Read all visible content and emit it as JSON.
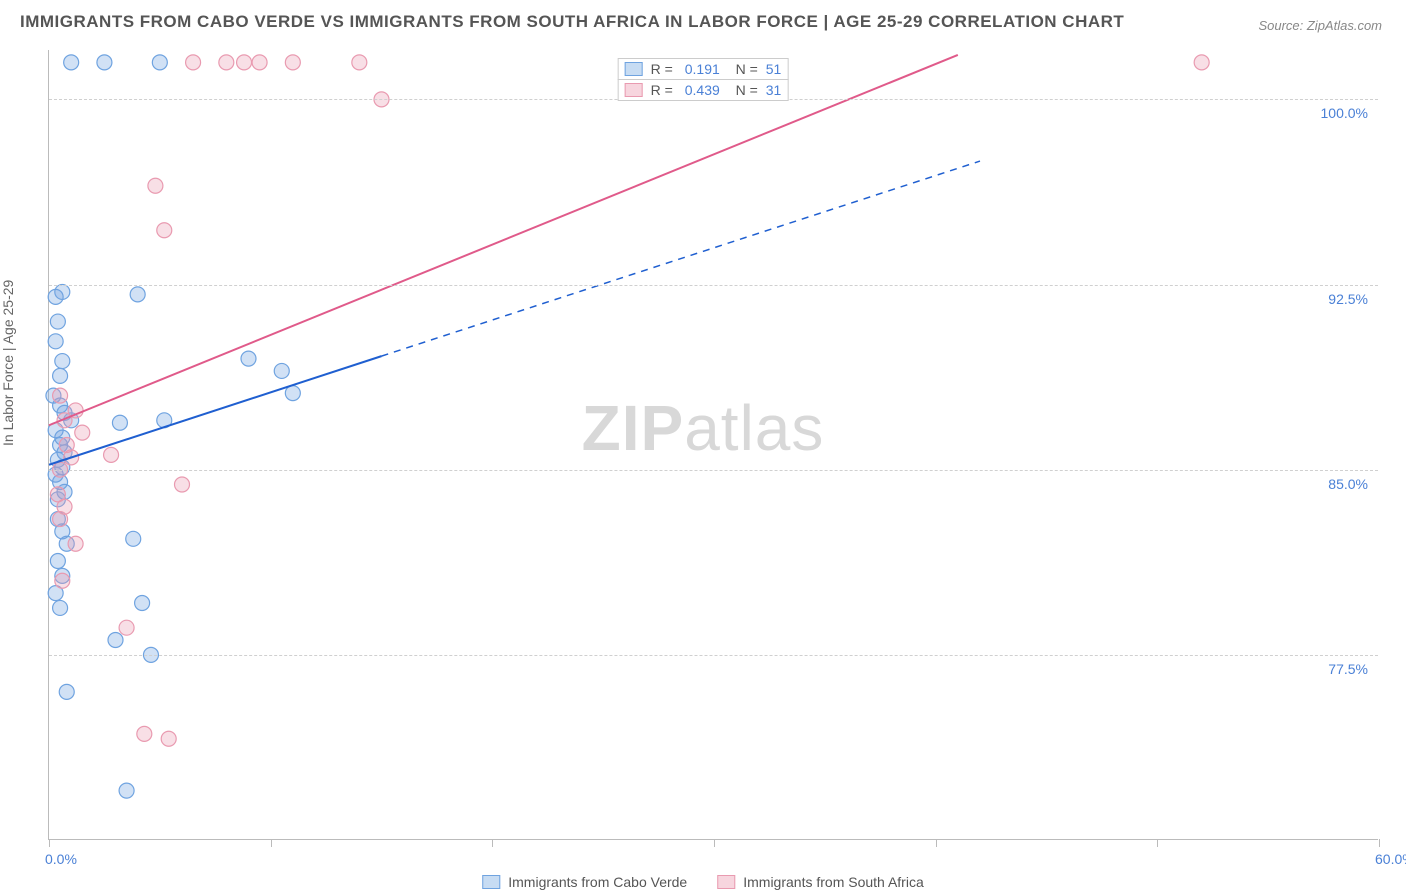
{
  "title": "IMMIGRANTS FROM CABO VERDE VS IMMIGRANTS FROM SOUTH AFRICA IN LABOR FORCE | AGE 25-29 CORRELATION CHART",
  "source": "Source: ZipAtlas.com",
  "watermark_bold": "ZIP",
  "watermark_light": "atlas",
  "ylabel": "In Labor Force | Age 25-29",
  "chart": {
    "type": "scatter",
    "xlim": [
      0,
      60
    ],
    "ylim": [
      70,
      102
    ],
    "x_ticks": [
      0,
      10,
      20,
      30,
      40,
      50,
      60
    ],
    "x_tick_labels": [
      "0.0%",
      "",
      "",
      "",
      "",
      "",
      "60.0%"
    ],
    "y_ticks": [
      77.5,
      85.0,
      92.5,
      100.0
    ],
    "y_tick_labels": [
      "77.5%",
      "85.0%",
      "92.5%",
      "100.0%"
    ],
    "grid_color": "#d0d0d0",
    "background_color": "#ffffff",
    "marker_radius": 7.5,
    "marker_stroke_width": 1.2,
    "fill_opacity": 0.32,
    "series": [
      {
        "name": "Immigrants from Cabo Verde",
        "color": "#6fa3e0",
        "line_color": "#1f5fd0",
        "R": "0.191",
        "N": "51",
        "trend": {
          "x1": 0,
          "y1": 85.2,
          "x2": 15,
          "y2": 89.6,
          "dash_x2": 42,
          "dash_y2": 97.5
        },
        "points": [
          [
            1.0,
            101.5
          ],
          [
            2.5,
            101.5
          ],
          [
            5.0,
            101.5
          ],
          [
            0.3,
            92.0
          ],
          [
            0.6,
            92.2
          ],
          [
            0.4,
            91.0
          ],
          [
            4.0,
            92.1
          ],
          [
            0.3,
            90.2
          ],
          [
            0.6,
            89.4
          ],
          [
            0.5,
            88.8
          ],
          [
            0.2,
            88.0
          ],
          [
            0.5,
            87.6
          ],
          [
            0.7,
            87.3
          ],
          [
            1.0,
            87.0
          ],
          [
            0.3,
            86.6
          ],
          [
            0.6,
            86.3
          ],
          [
            0.5,
            86.0
          ],
          [
            0.7,
            85.7
          ],
          [
            0.4,
            85.4
          ],
          [
            0.6,
            85.1
          ],
          [
            0.3,
            84.8
          ],
          [
            0.5,
            84.5
          ],
          [
            0.7,
            84.1
          ],
          [
            0.4,
            83.8
          ],
          [
            3.2,
            86.9
          ],
          [
            5.2,
            87.0
          ],
          [
            9.0,
            89.5
          ],
          [
            10.5,
            89.0
          ],
          [
            11.0,
            88.1
          ],
          [
            0.4,
            83.0
          ],
          [
            0.6,
            82.5
          ],
          [
            0.8,
            82.0
          ],
          [
            3.8,
            82.2
          ],
          [
            0.4,
            81.3
          ],
          [
            0.6,
            80.7
          ],
          [
            0.3,
            80.0
          ],
          [
            0.5,
            79.4
          ],
          [
            4.2,
            79.6
          ],
          [
            3.0,
            78.1
          ],
          [
            4.6,
            77.5
          ],
          [
            0.8,
            76.0
          ],
          [
            3.5,
            72.0
          ]
        ]
      },
      {
        "name": "Immigrants from South Africa",
        "color": "#e99ab0",
        "line_color": "#e05a8a",
        "R": "0.439",
        "N": "31",
        "trend": {
          "x1": 0,
          "y1": 86.8,
          "x2": 41,
          "y2": 101.8
        },
        "points": [
          [
            6.5,
            101.5
          ],
          [
            8.0,
            101.5
          ],
          [
            8.8,
            101.5
          ],
          [
            9.5,
            101.5
          ],
          [
            11.0,
            101.5
          ],
          [
            14.0,
            101.5
          ],
          [
            52.0,
            101.5
          ],
          [
            15.0,
            100.0
          ],
          [
            4.8,
            96.5
          ],
          [
            5.2,
            94.7
          ],
          [
            0.5,
            88.0
          ],
          [
            1.2,
            87.4
          ],
          [
            0.7,
            87.0
          ],
          [
            1.5,
            86.5
          ],
          [
            0.8,
            86.0
          ],
          [
            1.0,
            85.5
          ],
          [
            0.5,
            85.0
          ],
          [
            2.8,
            85.6
          ],
          [
            6.0,
            84.4
          ],
          [
            0.4,
            84.0
          ],
          [
            0.7,
            83.5
          ],
          [
            0.5,
            83.0
          ],
          [
            1.2,
            82.0
          ],
          [
            0.6,
            80.5
          ],
          [
            3.5,
            78.6
          ],
          [
            4.3,
            74.3
          ],
          [
            5.4,
            74.1
          ]
        ]
      }
    ]
  },
  "legend_top": [
    {
      "swatch_fill": "#c7dcf3",
      "swatch_border": "#6fa3e0",
      "R": "0.191",
      "N": "51"
    },
    {
      "swatch_fill": "#f7d5de",
      "swatch_border": "#e99ab0",
      "R": "0.439",
      "N": "31"
    }
  ],
  "legend_bottom": [
    {
      "swatch_fill": "#c7dcf3",
      "swatch_border": "#6fa3e0",
      "label": "Immigrants from Cabo Verde"
    },
    {
      "swatch_fill": "#f7d5de",
      "swatch_border": "#e99ab0",
      "label": "Immigrants from South Africa"
    }
  ]
}
